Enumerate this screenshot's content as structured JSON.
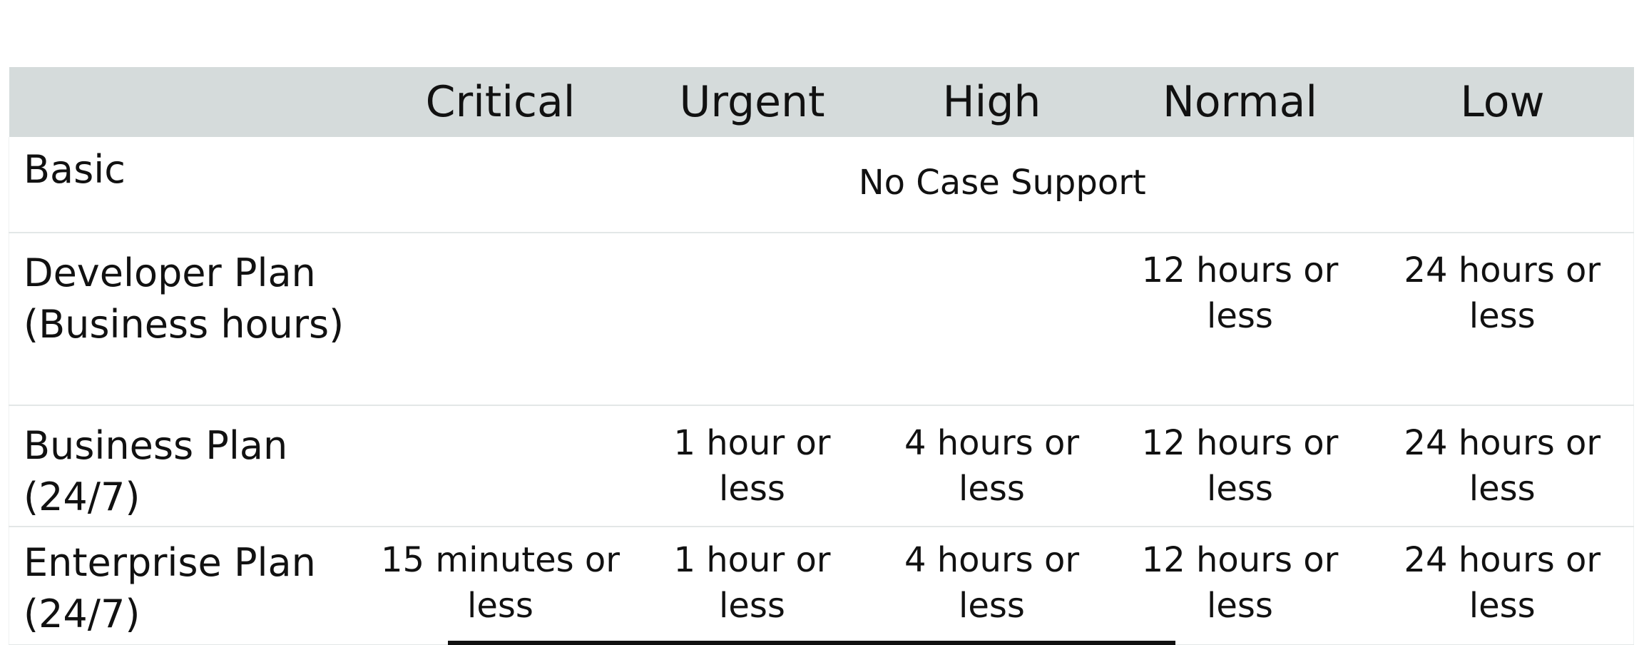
{
  "table": {
    "columns": [
      "",
      "Critical",
      "Urgent",
      "High",
      "Normal",
      "Low"
    ],
    "rows": [
      {
        "name": "Basic",
        "span_text": "No Case Support"
      },
      {
        "name": "Developer Plan\n(Business hours)",
        "cells": [
          "",
          "",
          "",
          "12 hours or\nless",
          "24 hours or\nless"
        ]
      },
      {
        "name": "Business Plan\n(24/7)",
        "cells": [
          "",
          "1 hour or\nless",
          "4 hours or\nless",
          "12 hours or\nless",
          "24 hours or\nless"
        ]
      },
      {
        "name": "Enterprise Plan\n(24/7)",
        "cells": [
          "15 minutes or\nless",
          "1 hour or\nless",
          "4 hours or\nless",
          "12 hours or\nless",
          "24 hours or\nless"
        ]
      }
    ]
  }
}
